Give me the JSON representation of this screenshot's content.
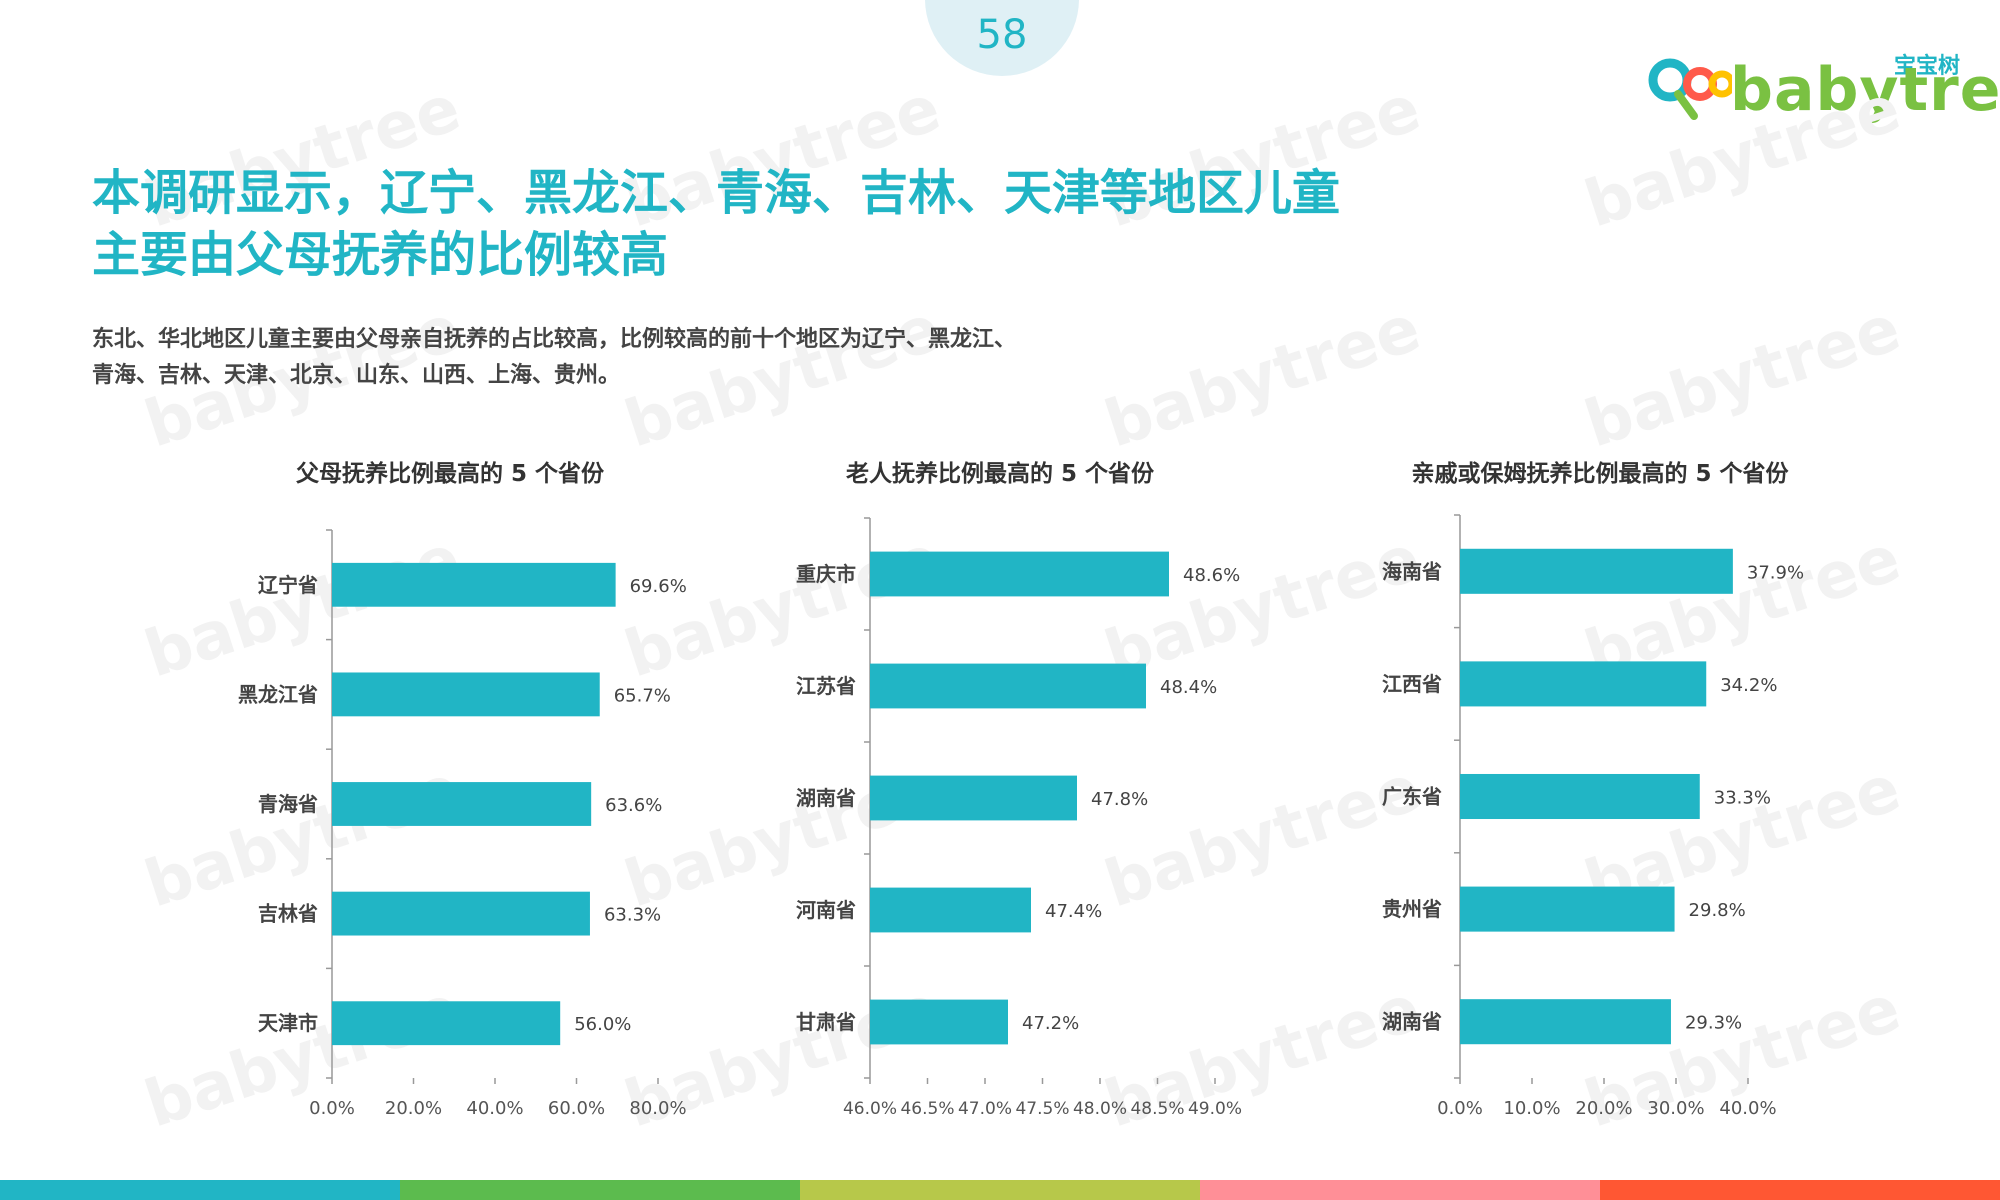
{
  "page_number": "58",
  "logo": {
    "cn_text": "宝宝树",
    "en_text": "babytree"
  },
  "headline": {
    "line1": "本调研显示，辽宁、黑龙江、青海、吉林、天津等地区儿童",
    "line2": "主要由父母抚养的比例较高"
  },
  "lead": {
    "line1": "东北、华北地区儿童主要由父母亲自抚养的占比较高，比例较高的前十个地区为辽宁、黑龙江、",
    "line2": "青海、吉林、天津、北京、山东、山西、上海、贵州。"
  },
  "colors": {
    "accent": "#21b5c5",
    "bar": "#21b5c5",
    "axis": "#999999",
    "bottom_bar": [
      "#21b5c5",
      "#5cbb4e",
      "#b7c84a",
      "#ff8f97",
      "#ff5733"
    ]
  },
  "chart_data": [
    {
      "type": "bar",
      "orientation": "horizontal",
      "title": "父母抚养比例最高的 5 个省份",
      "categories": [
        "辽宁省",
        "黑龙江省",
        "青海省",
        "吉林省",
        "天津市"
      ],
      "values": [
        69.6,
        65.7,
        63.6,
        63.3,
        56.0
      ],
      "data_labels": [
        "69.6%",
        "65.7%",
        "63.6%",
        "63.3%",
        "56.0%"
      ],
      "xlim": [
        0,
        80
      ],
      "ticks": [
        0,
        20,
        40,
        60,
        80
      ],
      "tick_labels": [
        "0.0%",
        "20.0%",
        "40.0%",
        "60.0%",
        "80.0%"
      ],
      "grid": false
    },
    {
      "type": "bar",
      "orientation": "horizontal",
      "title": "老人抚养比例最高的 5 个省份",
      "categories": [
        "重庆市",
        "江苏省",
        "湖南省",
        "河南省",
        "甘肃省"
      ],
      "values": [
        48.6,
        48.4,
        47.8,
        47.4,
        47.2
      ],
      "data_labels": [
        "48.6%",
        "48.4%",
        "47.8%",
        "47.4%",
        "47.2%"
      ],
      "xlim": [
        46,
        49
      ],
      "ticks": [
        46,
        46.5,
        47,
        47.5,
        48,
        48.5,
        49
      ],
      "tick_labels": [
        "46.0%",
        "46.5%",
        "47.0%",
        "47.5%",
        "48.0%",
        "48.5%",
        "49.0%"
      ],
      "grid": false
    },
    {
      "type": "bar",
      "orientation": "horizontal",
      "title": "亲戚或保姆抚养比例最高的 5 个省份",
      "categories": [
        "海南省",
        "江西省",
        "广东省",
        "贵州省",
        "湖南省"
      ],
      "values": [
        37.9,
        34.2,
        33.3,
        29.8,
        29.3
      ],
      "data_labels": [
        "37.9%",
        "34.2%",
        "33.3%",
        "29.8%",
        "29.3%"
      ],
      "xlim": [
        0,
        40
      ],
      "ticks": [
        0,
        10,
        20,
        30,
        40
      ],
      "tick_labels": [
        "0.0%",
        "10.0%",
        "20.0%",
        "30.0%",
        "40.0%"
      ],
      "grid": false
    }
  ]
}
